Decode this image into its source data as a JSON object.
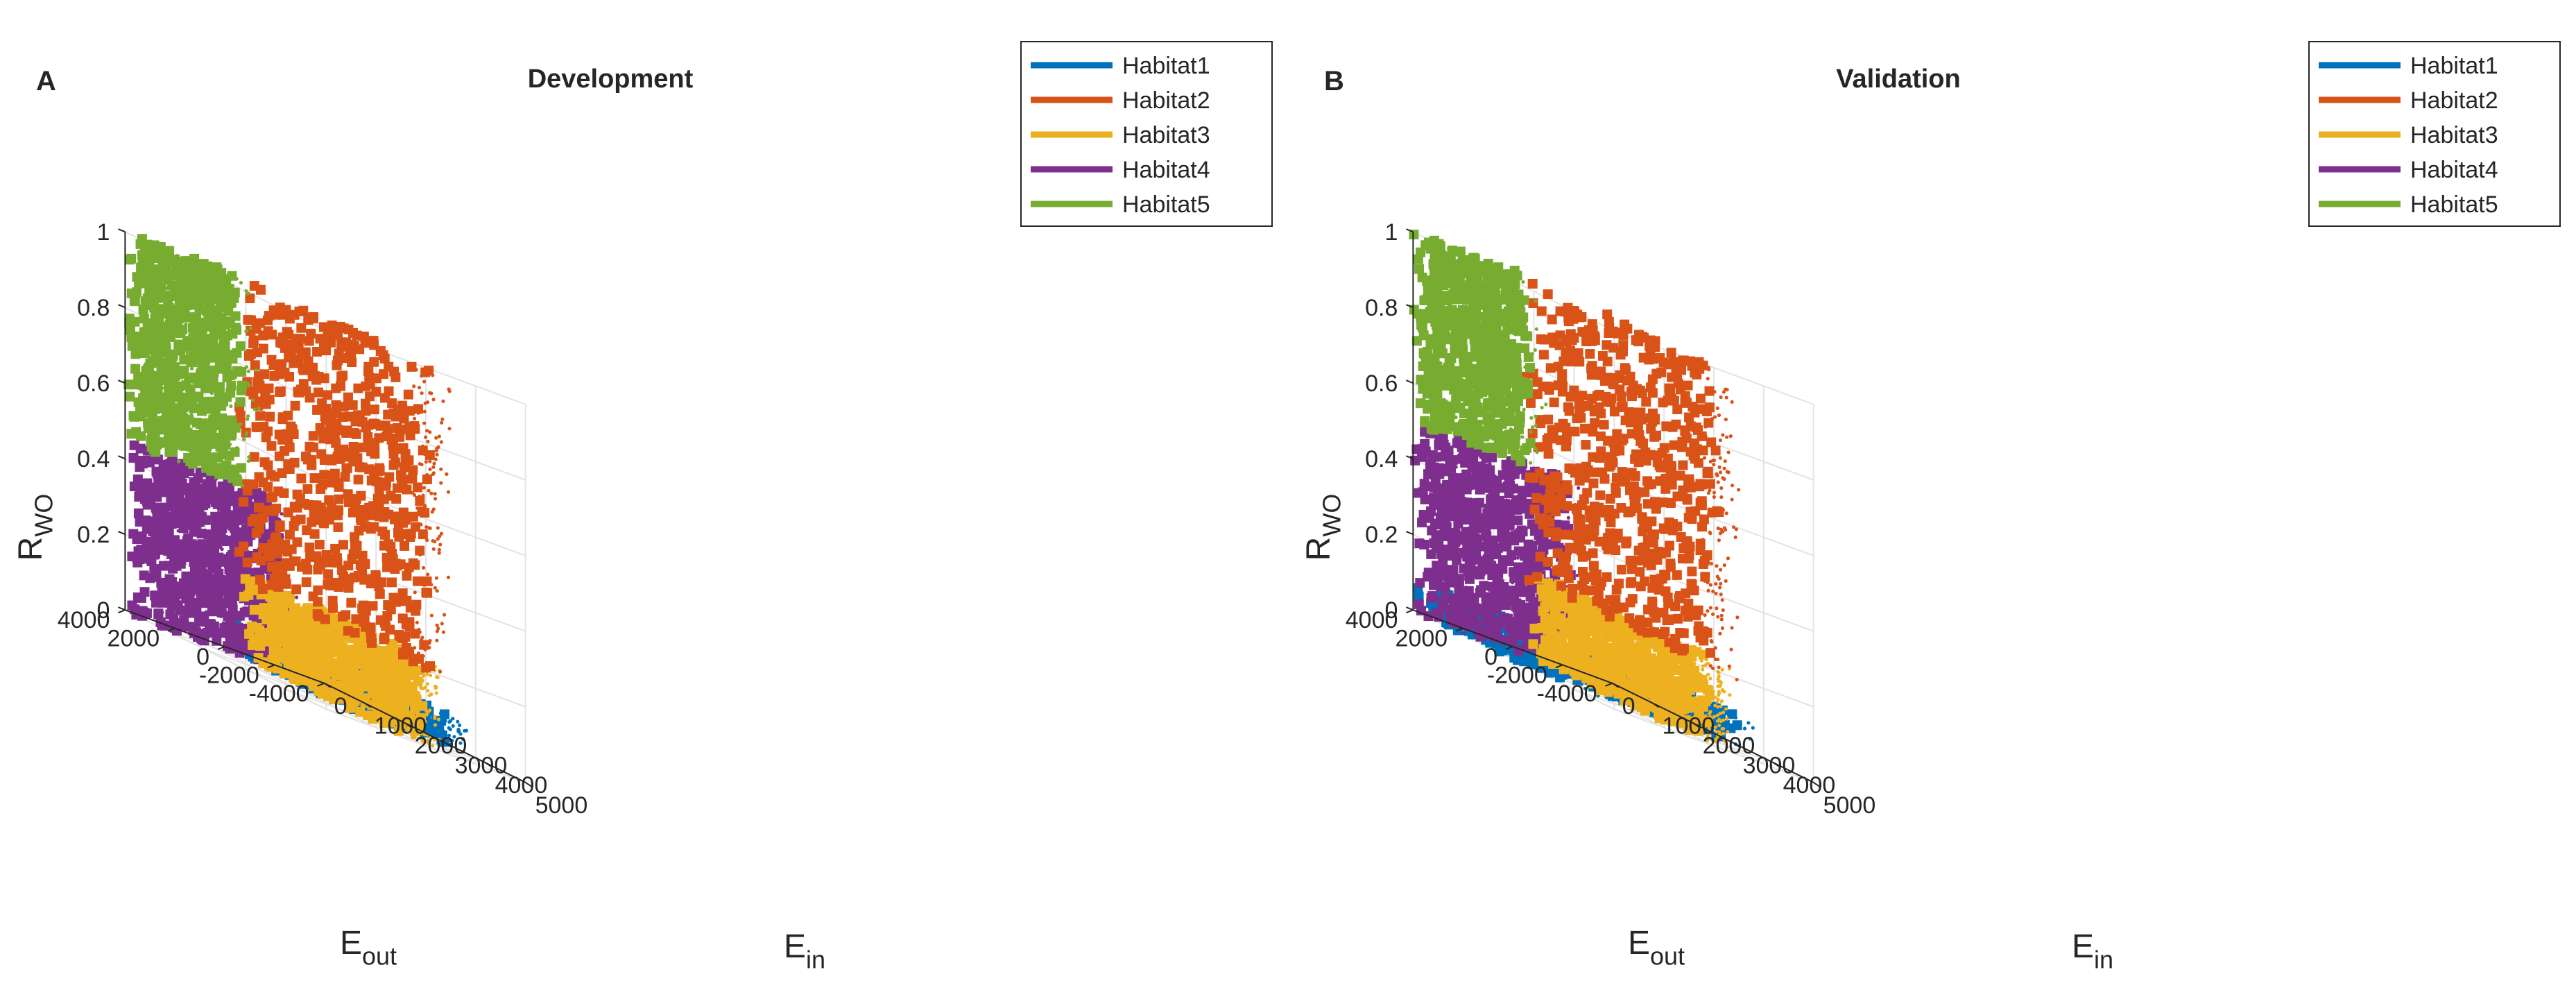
{
  "colors": {
    "Habitat1": "#0072BD",
    "Habitat2": "#D95319",
    "Habitat3": "#EDB120",
    "Habitat4": "#7E2F8E",
    "Habitat5": "#77AC30"
  },
  "chart_data": [
    {
      "type": "scatter",
      "panel_label": "A",
      "title": "Development",
      "xlabel": "E",
      "xlabel_sub": "in",
      "ylabel": "E",
      "ylabel_sub": "out",
      "zlabel": "R",
      "zlabel_sub": "WO",
      "xlim": [
        0,
        5000
      ],
      "ylim": [
        -4000,
        4000
      ],
      "zlim": [
        0,
        1
      ],
      "x_ticks": [
        "0",
        "1000",
        "2000",
        "3000",
        "4000",
        "5000"
      ],
      "y_ticks": [
        "-4000",
        "-2000",
        "0",
        "2000",
        "4000"
      ],
      "z_ticks": [
        "0",
        "0.2",
        "0.4",
        "0.6",
        "0.8",
        "1"
      ],
      "grid": true,
      "legend_position": "top-right",
      "series": [
        {
          "name": "Habitat1",
          "habitat": 1
        },
        {
          "name": "Habitat2",
          "habitat": 2
        },
        {
          "name": "Habitat3",
          "habitat": 3
        },
        {
          "name": "Habitat4",
          "habitat": 4
        },
        {
          "name": "Habitat5",
          "habitat": 5
        }
      ],
      "regions": [
        {
          "name": "Habitat1",
          "habitat": 1,
          "x_range": [
            0,
            3200
          ],
          "y_range": [
            -4000,
            0
          ],
          "z_range": [
            0,
            0.08
          ]
        },
        {
          "name": "Habitat4",
          "habitat": 4,
          "x_range": [
            0,
            600
          ],
          "y_range": [
            -1500,
            4000
          ],
          "z_range": [
            0,
            0.45
          ]
        },
        {
          "name": "Habitat3",
          "habitat": 3,
          "x_range": [
            600,
            4400
          ],
          "y_range": [
            -1000,
            200
          ],
          "z_range": [
            0,
            0.22
          ]
        },
        {
          "name": "Habitat2",
          "habitat": 2,
          "x_range": [
            500,
            4800
          ],
          "y_range": [
            -600,
            400
          ],
          "z_range": [
            0.2,
            1
          ]
        },
        {
          "name": "Habitat5",
          "habitat": 5,
          "x_range": [
            0,
            500
          ],
          "y_range": [
            0,
            4000
          ],
          "z_range": [
            0.45,
            1
          ]
        }
      ]
    },
    {
      "type": "scatter",
      "panel_label": "B",
      "title": "Validation",
      "xlabel": "E",
      "xlabel_sub": "in",
      "ylabel": "E",
      "ylabel_sub": "out",
      "zlabel": "R",
      "zlabel_sub": "WO",
      "xlim": [
        0,
        5000
      ],
      "ylim": [
        -4000,
        4000
      ],
      "zlim": [
        0,
        1
      ],
      "x_ticks": [
        "0",
        "1000",
        "2000",
        "3000",
        "4000",
        "5000"
      ],
      "y_ticks": [
        "-4000",
        "-2000",
        "0",
        "2000",
        "4000"
      ],
      "z_ticks": [
        "0",
        "0.2",
        "0.4",
        "0.6",
        "0.8",
        "1"
      ],
      "grid": true,
      "legend_position": "top-right",
      "series": [
        {
          "name": "Habitat1",
          "habitat": 1
        },
        {
          "name": "Habitat2",
          "habitat": 2
        },
        {
          "name": "Habitat3",
          "habitat": 3
        },
        {
          "name": "Habitat4",
          "habitat": 4
        },
        {
          "name": "Habitat5",
          "habitat": 5
        }
      ],
      "regions": [
        {
          "name": "Habitat1",
          "habitat": 1,
          "x_range": [
            0,
            3200
          ],
          "y_range": [
            -4000,
            4000
          ],
          "z_range": [
            0,
            0.08
          ]
        },
        {
          "name": "Habitat4",
          "habitat": 4,
          "x_range": [
            0,
            600
          ],
          "y_range": [
            -1500,
            4000
          ],
          "z_range": [
            0,
            0.5
          ]
        },
        {
          "name": "Habitat3",
          "habitat": 3,
          "x_range": [
            600,
            4400
          ],
          "y_range": [
            -1000,
            200
          ],
          "z_range": [
            0,
            0.22
          ]
        },
        {
          "name": "Habitat2",
          "habitat": 2,
          "x_range": [
            500,
            4800
          ],
          "y_range": [
            -600,
            400
          ],
          "z_range": [
            0.2,
            1
          ]
        },
        {
          "name": "Habitat5",
          "habitat": 5,
          "x_range": [
            0,
            500
          ],
          "y_range": [
            0,
            4000
          ],
          "z_range": [
            0.5,
            1
          ]
        }
      ]
    }
  ]
}
